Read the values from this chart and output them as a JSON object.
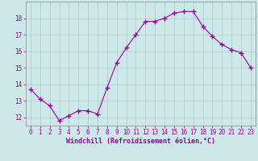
{
  "x": [
    0,
    1,
    2,
    3,
    4,
    5,
    6,
    7,
    8,
    9,
    10,
    11,
    12,
    13,
    14,
    15,
    16,
    17,
    18,
    19,
    20,
    21,
    22,
    23
  ],
  "y": [
    13.7,
    13.1,
    12.7,
    11.8,
    12.1,
    12.4,
    12.4,
    12.2,
    13.8,
    15.3,
    16.2,
    17.0,
    17.8,
    17.8,
    18.0,
    18.3,
    18.4,
    18.4,
    17.5,
    16.9,
    16.4,
    16.1,
    15.9,
    15.0
  ],
  "line_color": "#990099",
  "marker": "+",
  "marker_size": 4,
  "bg_color": "#cce8e8",
  "grid_color": "#b0c8c8",
  "xlabel": "Windchill (Refroidissement éolien,°C)",
  "xlabel_color": "#990099",
  "tick_color": "#990099",
  "ylim": [
    11.5,
    19.0
  ],
  "xlim": [
    -0.5,
    23.5
  ],
  "yticks": [
    12,
    13,
    14,
    15,
    16,
    17,
    18
  ],
  "xticks": [
    0,
    1,
    2,
    3,
    4,
    5,
    6,
    7,
    8,
    9,
    10,
    11,
    12,
    13,
    14,
    15,
    16,
    17,
    18,
    19,
    20,
    21,
    22,
    23
  ]
}
